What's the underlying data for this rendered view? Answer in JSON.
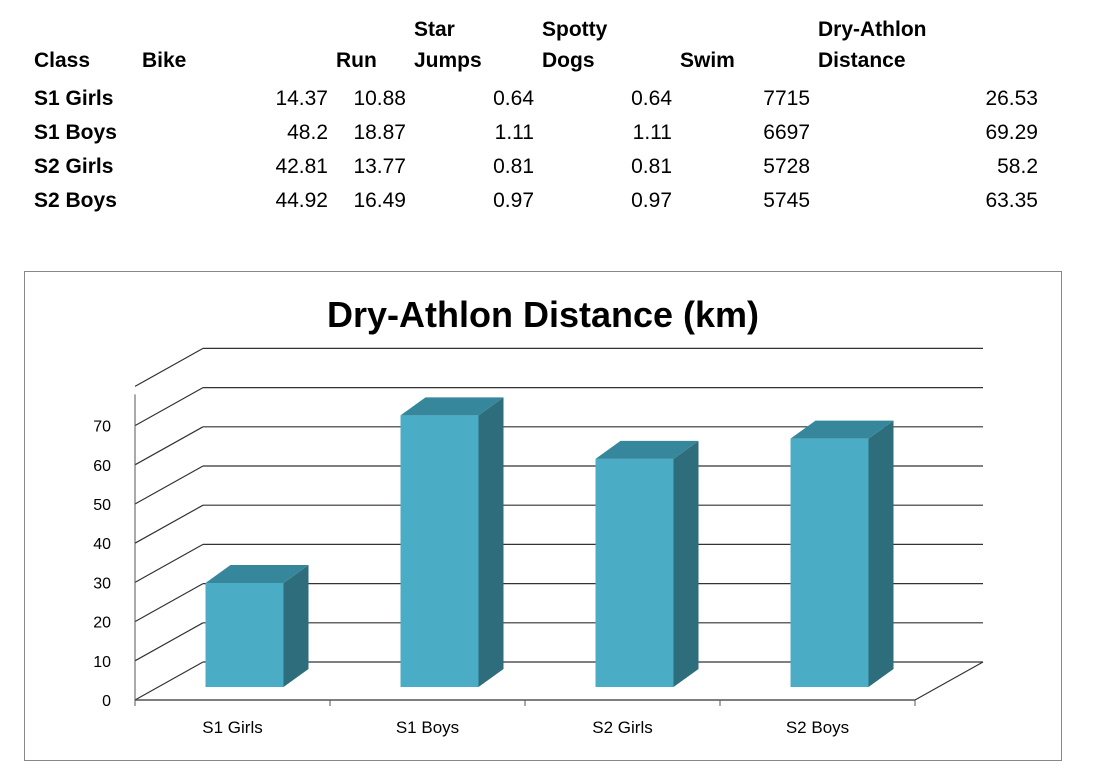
{
  "table": {
    "headers": [
      "Class",
      "Bike",
      "Run",
      "Star\nJumps",
      "Spotty\nDogs",
      "Swim",
      "Dry-Athlon\nDistance"
    ],
    "rows": [
      {
        "cls": "S1 Girls",
        "bike": "14.37",
        "run": "10.88",
        "star": "0.64",
        "spotty": "0.64",
        "swim": "7715",
        "dist": "26.53"
      },
      {
        "cls": "S1 Boys",
        "bike": "48.2",
        "run": "18.87",
        "star": "1.11",
        "spotty": "1.11",
        "swim": "6697",
        "dist": "69.29"
      },
      {
        "cls": "S2 Girls",
        "bike": "42.81",
        "run": "13.77",
        "star": "0.81",
        "spotty": "0.81",
        "swim": "5728",
        "dist": "58.2"
      },
      {
        "cls": "S2 Boys",
        "bike": "44.92",
        "run": "16.49",
        "star": "0.97",
        "spotty": "0.97",
        "swim": "5745",
        "dist": "63.35"
      }
    ]
  },
  "chart_data": {
    "type": "bar",
    "title": "Dry-Athlon Distance (km)",
    "categories": [
      "S1 Girls",
      "S1 Boys",
      "S2 Girls",
      "S2 Boys"
    ],
    "values": [
      26.53,
      69.29,
      58.2,
      63.35
    ],
    "yticks": [
      0,
      10,
      20,
      30,
      40,
      50,
      60,
      70
    ],
    "ylim": [
      0,
      80
    ],
    "grid": true,
    "style": "3d-column",
    "colors": {
      "front": "#4bacc6",
      "side": "#2e6d7b",
      "top": "#36879c",
      "grid": "#333333"
    }
  }
}
